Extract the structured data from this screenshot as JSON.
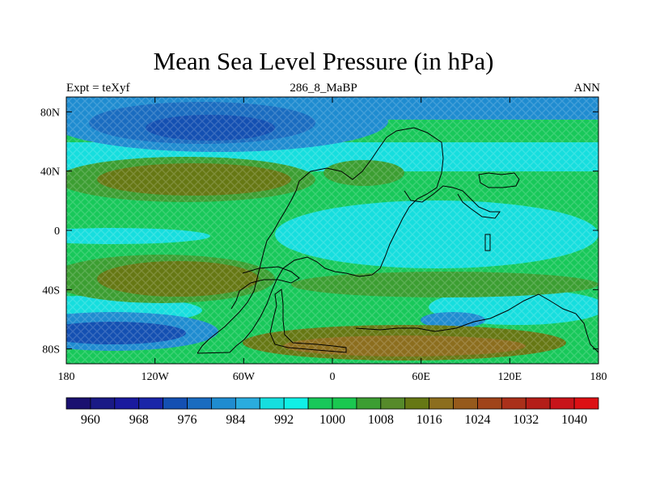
{
  "title": "Mean Sea Level Pressure (in hPa)",
  "subtitle_left": "Expt = teXyf",
  "subtitle_center": "286_8_MaBP",
  "subtitle_right": "ANN",
  "map": {
    "lon_range": [
      -180,
      180
    ],
    "lat_range": [
      -90,
      90
    ],
    "x_ticks": [
      {
        "value": -180,
        "label": "180"
      },
      {
        "value": -120,
        "label": "120W"
      },
      {
        "value": -60,
        "label": "60W"
      },
      {
        "value": 0,
        "label": "0"
      },
      {
        "value": 60,
        "label": "60E"
      },
      {
        "value": 120,
        "label": "120E"
      },
      {
        "value": 180,
        "label": "180"
      }
    ],
    "y_ticks": [
      {
        "value": 80,
        "label": "80N"
      },
      {
        "value": 40,
        "label": "40N"
      },
      {
        "value": 0,
        "label": "0"
      },
      {
        "value": -40,
        "label": "40S"
      },
      {
        "value": -80,
        "label": "80S"
      }
    ]
  },
  "colorbar": {
    "colors": [
      "#1a1070",
      "#1a1a86",
      "#1a1a9e",
      "#1a26a8",
      "#1450b2",
      "#1a6cc0",
      "#1f8cd0",
      "#2aacde",
      "#16dede",
      "#10f0e6",
      "#18c85a",
      "#1ac850",
      "#3c9e32",
      "#568a2a",
      "#667814",
      "#8c6e1e",
      "#965a1c",
      "#a0441a",
      "#aa301a",
      "#b41e18",
      "#c8141a",
      "#dc1014"
    ],
    "labels": [
      "960",
      "968",
      "976",
      "984",
      "992",
      "1000",
      "1008",
      "1016",
      "1024",
      "1032",
      "1040"
    ]
  }
}
